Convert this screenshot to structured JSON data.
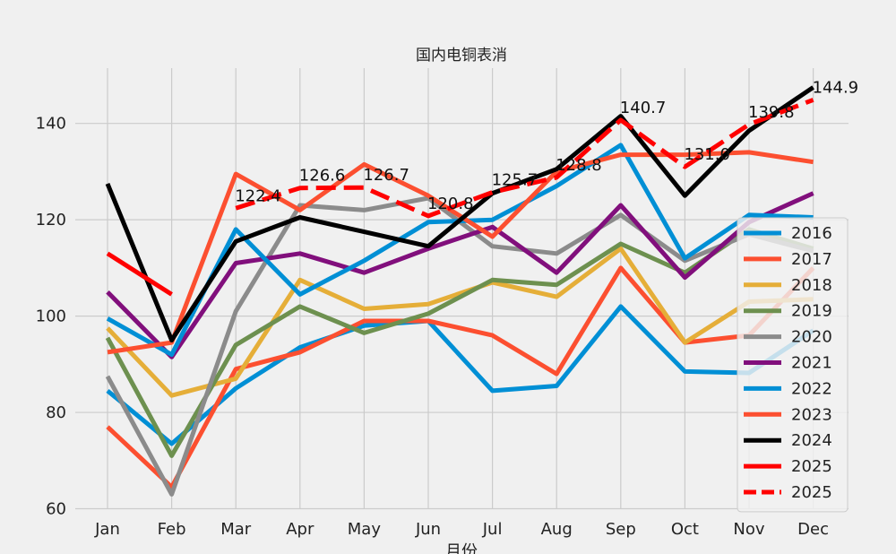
{
  "chart_data": {
    "type": "line",
    "title": "国内电铜表消",
    "xlabel": "月份",
    "ylabel": "",
    "categories": [
      "Jan",
      "Feb",
      "Mar",
      "Apr",
      "May",
      "Jun",
      "Jul",
      "Aug",
      "Sep",
      "Oct",
      "Nov",
      "Dec"
    ],
    "ylim": [
      60,
      150
    ],
    "yticks": [
      60,
      80,
      100,
      120,
      140
    ],
    "grid": true,
    "legend_position": "right",
    "series": [
      {
        "name": "2016",
        "color": "#008fd5",
        "style": "solid",
        "values": [
          84.5,
          73.5,
          85,
          93.5,
          98,
          99,
          84.5,
          85.5,
          102,
          88.5,
          88.2,
          97
        ]
      },
      {
        "name": "2017",
        "color": "#fc4f30",
        "style": "solid",
        "values": [
          77,
          64.5,
          89,
          92.5,
          99,
          99,
          96,
          88,
          110,
          94.5,
          96,
          110
        ]
      },
      {
        "name": "2018",
        "color": "#e5ae38",
        "style": "solid",
        "values": [
          97.5,
          83.5,
          87,
          107.5,
          101.5,
          102.5,
          107,
          104,
          114,
          94.5,
          103,
          103.5
        ]
      },
      {
        "name": "2019",
        "color": "#6d904f",
        "style": "solid",
        "values": [
          95.5,
          71,
          94,
          102,
          96.5,
          100.5,
          107.5,
          106.5,
          115,
          109,
          118,
          114
        ]
      },
      {
        "name": "2020",
        "color": "#8b8b8b",
        "style": "solid",
        "values": [
          87.5,
          63,
          101,
          123,
          122,
          124.5,
          114.5,
          113,
          121,
          111.5,
          117,
          113.5
        ]
      },
      {
        "name": "2021",
        "color": "#810f7c",
        "style": "solid",
        "values": [
          105,
          91.5,
          111,
          113,
          109,
          114,
          118.5,
          109,
          123,
          108,
          119.5,
          125.5
        ]
      },
      {
        "name": "2022",
        "color": "#008fd5",
        "style": "solid",
        "values": [
          99.5,
          92,
          118,
          104.5,
          111.5,
          119.5,
          120,
          127,
          135.5,
          112,
          121,
          120.5
        ]
      },
      {
        "name": "2023",
        "color": "#fc4f30",
        "style": "solid",
        "values": [
          92.5,
          94.5,
          129.5,
          122,
          131.5,
          125,
          116.5,
          130,
          133.5,
          133.5,
          134,
          132
        ]
      },
      {
        "name": "2024",
        "color": "#000000",
        "style": "solid",
        "values": [
          127.5,
          95,
          115.5,
          120.5,
          117.5,
          114.5,
          125.5,
          130.5,
          141.5,
          125,
          138.5,
          147.5
        ]
      },
      {
        "name": "2025",
        "color": "#ff0000",
        "style": "solid",
        "values": [
          113,
          104.5,
          null,
          null,
          null,
          null,
          null,
          null,
          null,
          null,
          null,
          null
        ]
      },
      {
        "name": "2025",
        "color": "#ff0000",
        "style": "dashed",
        "values": [
          null,
          null,
          122.4,
          126.6,
          126.7,
          120.8,
          125.7,
          128.8,
          140.7,
          131.0,
          139.8,
          144.9
        ]
      }
    ],
    "annotations": [
      {
        "x": "Mar",
        "y": 122.4,
        "text": "122.4"
      },
      {
        "x": "Apr",
        "y": 126.6,
        "text": "126.6"
      },
      {
        "x": "May",
        "y": 126.7,
        "text": "126.7"
      },
      {
        "x": "Jun",
        "y": 120.8,
        "text": "120.8"
      },
      {
        "x": "Jul",
        "y": 125.7,
        "text": "125.7"
      },
      {
        "x": "Aug",
        "y": 128.8,
        "text": "128.8"
      },
      {
        "x": "Sep",
        "y": 140.7,
        "text": "140.7"
      },
      {
        "x": "Oct",
        "y": 131.0,
        "text": "131.0"
      },
      {
        "x": "Nov",
        "y": 139.8,
        "text": "139.8"
      },
      {
        "x": "Dec",
        "y": 144.9,
        "text": "144.9"
      }
    ]
  }
}
